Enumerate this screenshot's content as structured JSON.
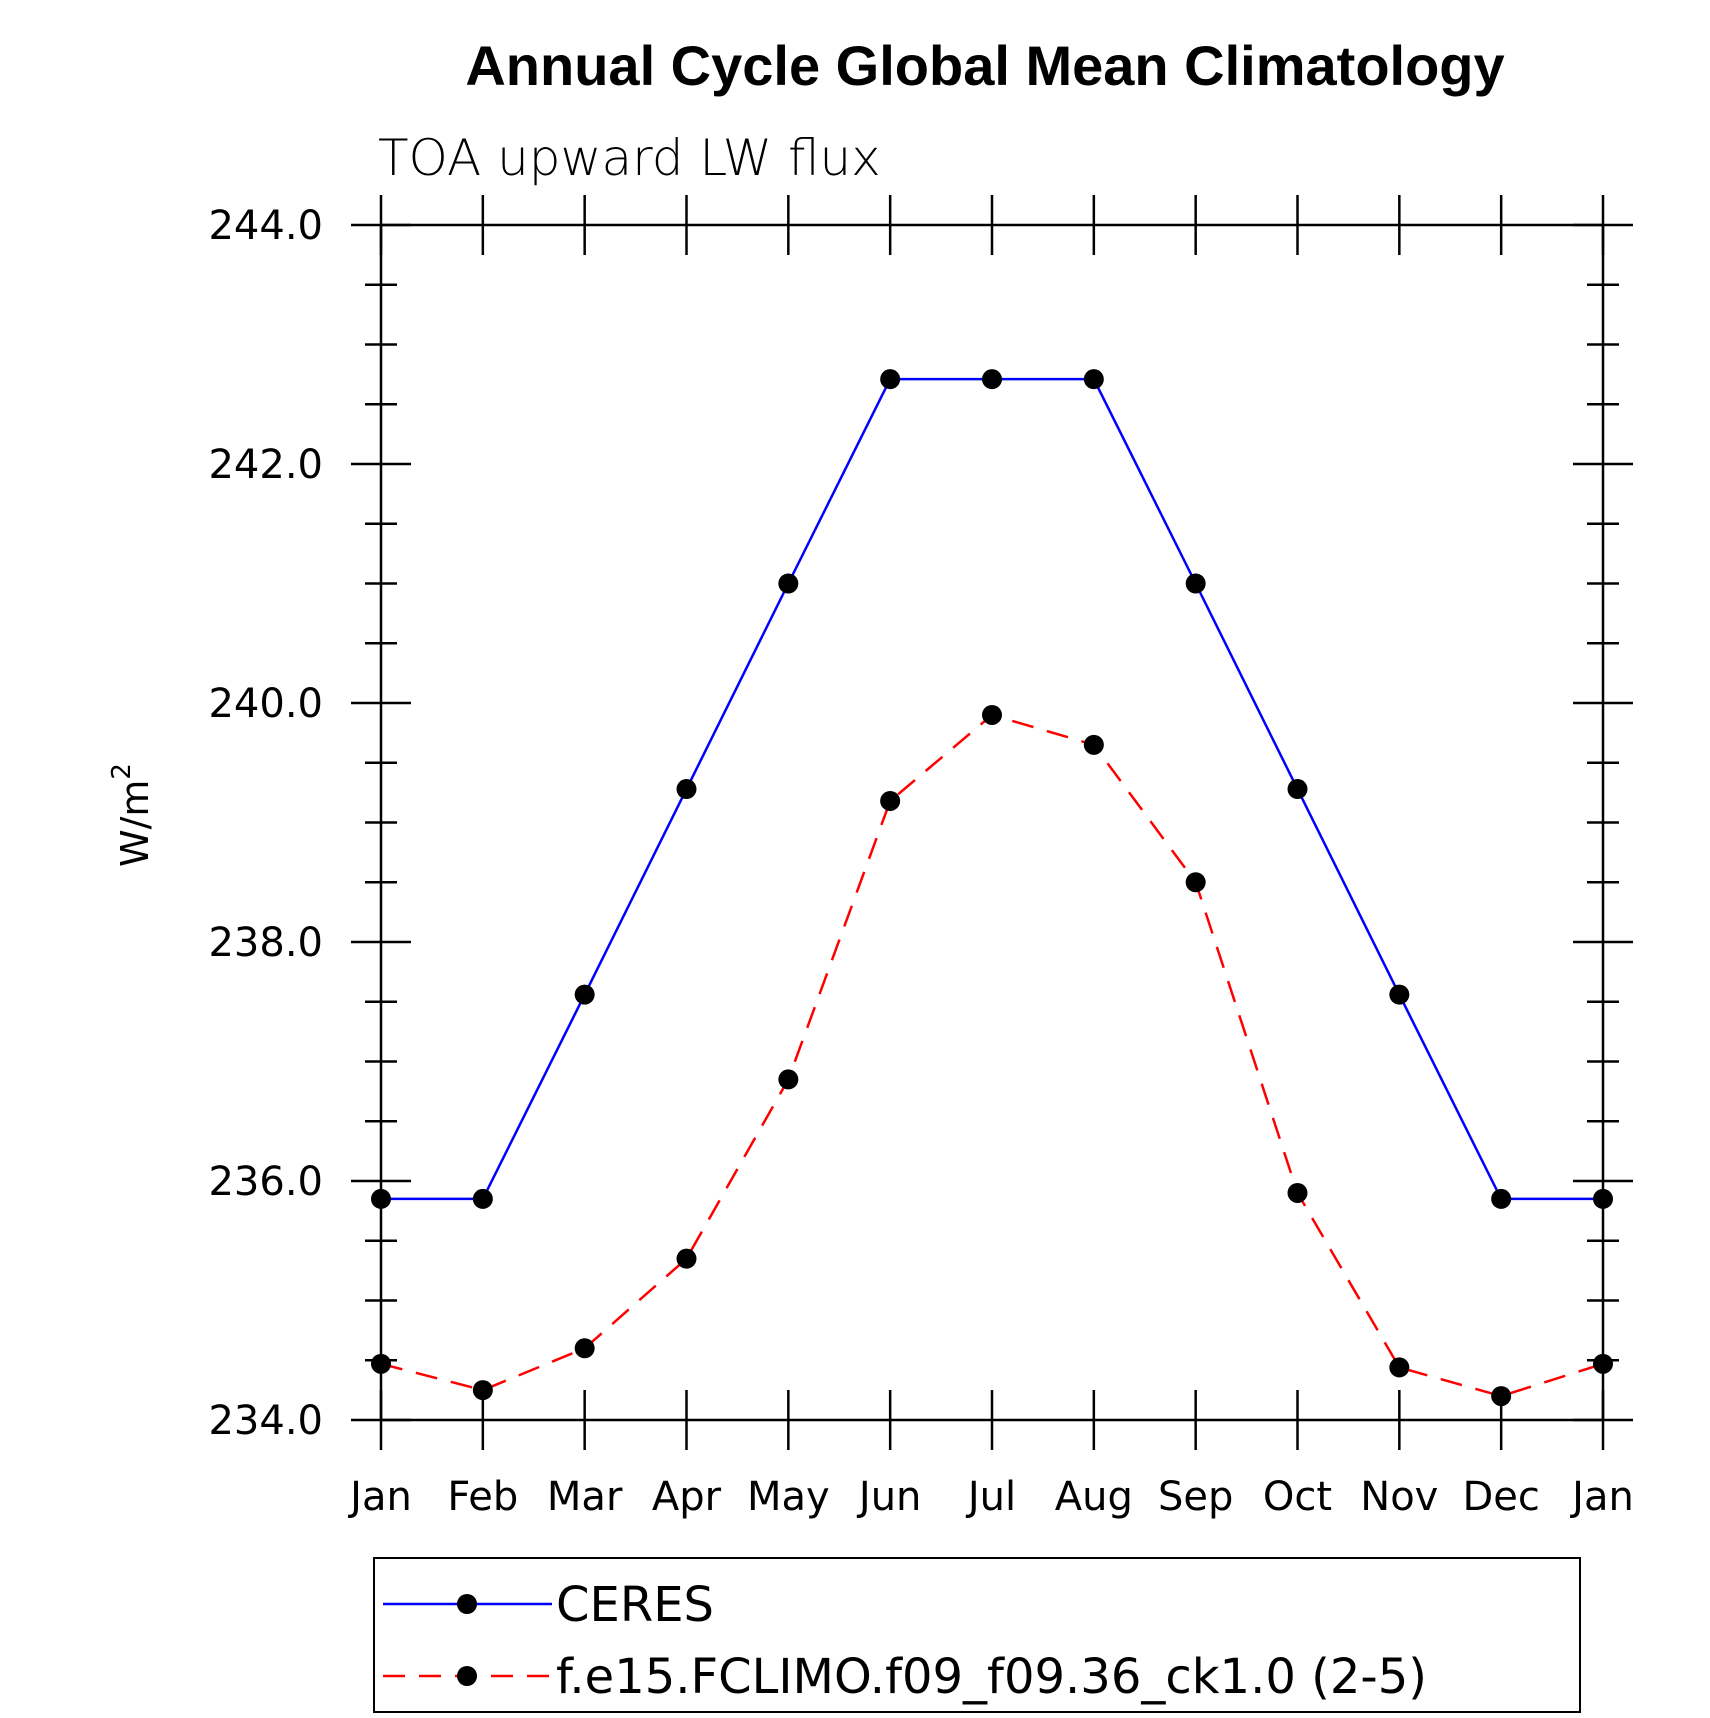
{
  "chart_data": {
    "type": "line",
    "title": "Annual Cycle Global Mean Climatology",
    "subtitle": "TOA upward LW flux",
    "ylabel": "W/m",
    "ylabel_superscript": "2",
    "categories": [
      "Jan",
      "Feb",
      "Mar",
      "Apr",
      "May",
      "Jun",
      "Jul",
      "Aug",
      "Sep",
      "Oct",
      "Nov",
      "Dec",
      "Jan"
    ],
    "ylim": [
      234.0,
      244.0
    ],
    "y_ticks": [
      "234.0",
      "236.0",
      "238.0",
      "240.0",
      "242.0",
      "244.0"
    ],
    "y_minor_step": 0.5,
    "grid": false,
    "legend_position": "bottom",
    "series": [
      {
        "name": "CERES",
        "color": "#0000ff",
        "line_style": "solid",
        "marker": "filled-circle",
        "values": [
          235.85,
          235.85,
          237.56,
          239.28,
          241.0,
          242.71,
          242.71,
          242.71,
          241.0,
          239.28,
          237.56,
          235.85,
          235.85
        ]
      },
      {
        "name": "f.e15.FCLIMO.f09_f09.36_ck1.0 (2-5)",
        "color": "#ff0000",
        "line_style": "dashed",
        "marker": "filled-circle",
        "values": [
          234.47,
          234.25,
          234.6,
          235.35,
          236.85,
          239.18,
          239.9,
          239.65,
          238.5,
          235.9,
          234.44,
          234.2,
          234.47
        ]
      }
    ]
  }
}
